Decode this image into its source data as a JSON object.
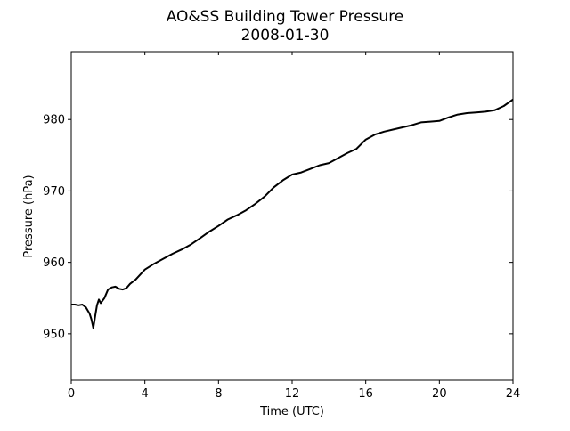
{
  "chart_data": {
    "type": "line",
    "title": "AO&SS Building Tower Pressure",
    "subtitle": "2008-01-30",
    "xlabel": "Time (UTC)",
    "ylabel": "Pressure (hPa)",
    "xlim": [
      0,
      24
    ],
    "ylim": [
      943.5,
      989.5
    ],
    "xticks": [
      0,
      4,
      8,
      12,
      16,
      20,
      24
    ],
    "yticks": [
      950,
      960,
      970,
      980
    ],
    "grid": false,
    "line_color": "#000000",
    "series": [
      {
        "x": [
          0,
          0.2,
          0.4,
          0.6,
          0.8,
          1.0,
          1.1,
          1.2,
          1.3,
          1.4,
          1.5,
          1.6,
          1.8,
          2.0,
          2.2,
          2.4,
          2.6,
          2.8,
          3.0,
          3.2,
          3.5,
          4.0,
          4.5,
          5.0,
          5.5,
          6.0,
          6.5,
          7.0,
          7.5,
          8.0,
          8.5,
          9.0,
          9.5,
          10.0,
          10.5,
          11.0,
          11.5,
          12.0,
          12.5,
          13.0,
          13.5,
          14.0,
          14.5,
          15.0,
          15.5,
          16.0,
          16.5,
          17.0,
          17.5,
          18.0,
          18.5,
          19.0,
          19.5,
          20.0,
          20.5,
          21.0,
          21.5,
          22.0,
          22.5,
          23.0,
          23.5,
          24.0
        ],
        "y": [
          954.1,
          954.1,
          954.0,
          954.1,
          953.7,
          952.8,
          952.0,
          950.8,
          952.5,
          954.0,
          954.8,
          954.3,
          955.0,
          956.2,
          956.5,
          956.6,
          956.3,
          956.2,
          956.4,
          957.0,
          957.6,
          959.0,
          959.8,
          960.5,
          961.2,
          961.8,
          962.5,
          963.4,
          964.3,
          965.1,
          966.0,
          966.6,
          967.3,
          968.2,
          969.2,
          970.5,
          971.5,
          972.3,
          972.6,
          973.1,
          973.6,
          973.9,
          974.6,
          975.3,
          975.9,
          977.2,
          977.9,
          978.3,
          978.6,
          978.9,
          979.2,
          979.6,
          979.7,
          979.8,
          980.3,
          980.7,
          980.9,
          981.0,
          981.1,
          981.3,
          981.9,
          982.8
        ]
      }
    ]
  }
}
